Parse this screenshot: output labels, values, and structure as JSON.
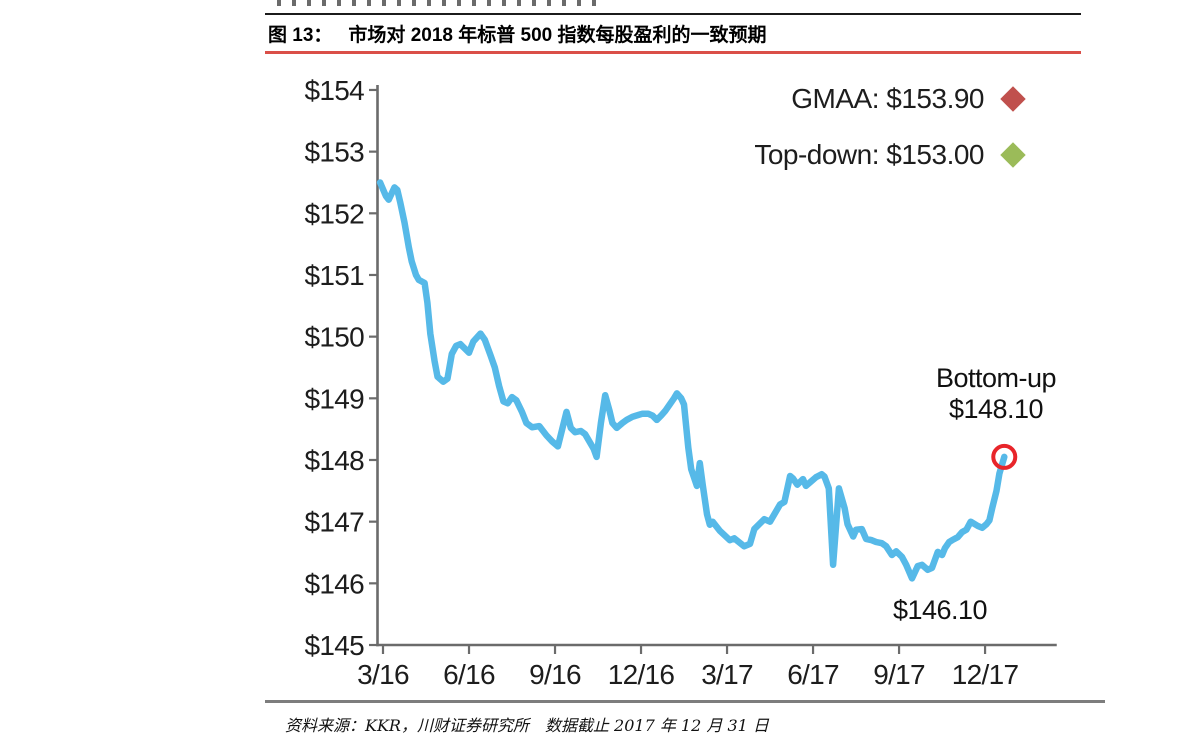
{
  "figure": {
    "label": "图 13：",
    "title": "市场对 2018 年标普 500 指数每股盈利的一致预期"
  },
  "legend": {
    "items": [
      {
        "label": "GMAA: $153.90",
        "marker": "diamond",
        "color": "#c0504d"
      },
      {
        "label": "Top-down: $153.00",
        "marker": "diamond",
        "color": "#9bbb59"
      }
    ]
  },
  "annotations": {
    "bottom_up": {
      "line1": "Bottom-up",
      "line2": "$148.10"
    },
    "low": {
      "text": "$146.10"
    }
  },
  "source_note": "资料来源：KKR，川财证券研究所　数据截止 2017 年 12 月 31 日",
  "chart_data": {
    "type": "line",
    "title": "市场对 2018 年标普 500 指数每股盈利的一致预期",
    "xlabel": "",
    "ylabel": "",
    "x_axis": {
      "unit": "months since 3/16",
      "tick_labels": [
        "3/16",
        "6/16",
        "9/16",
        "12/16",
        "3/17",
        "6/17",
        "9/17",
        "12/17"
      ],
      "tick_months": [
        0,
        3,
        6,
        9,
        12,
        15,
        18,
        21
      ],
      "range_months": [
        -0.2,
        23.5
      ]
    },
    "y_axis": {
      "tick_values": [
        145,
        146,
        147,
        148,
        149,
        150,
        151,
        152,
        153,
        154
      ],
      "tick_labels": [
        "$145",
        "$146",
        "$147",
        "$148",
        "$149",
        "$150",
        "$151",
        "$152",
        "$153",
        "$154"
      ],
      "min": 145,
      "max": 154
    },
    "axis_color": "#6b6b6b",
    "text_color": "#1d1d1d",
    "grid": false,
    "legend_position": "top-right",
    "key_values": {
      "GMAA": 153.9,
      "Top-down": 153.0,
      "Bottom-up": 148.1,
      "series_low": 146.1
    },
    "end_marker": {
      "month": 21.67,
      "value": 148.05,
      "color": "#e8252a",
      "shape": "open-circle"
    },
    "series": [
      {
        "name": "2018 S&P 500 EPS bottom-up consensus",
        "color": "#56b9e8",
        "points": [
          [
            -0.1,
            152.5
          ],
          [
            0.1,
            152.28
          ],
          [
            0.2,
            152.22
          ],
          [
            0.4,
            152.42
          ],
          [
            0.5,
            152.38
          ],
          [
            0.6,
            152.18
          ],
          [
            0.75,
            151.85
          ],
          [
            0.9,
            151.45
          ],
          [
            1.0,
            151.22
          ],
          [
            1.15,
            151.0
          ],
          [
            1.25,
            150.92
          ],
          [
            1.45,
            150.87
          ],
          [
            1.55,
            150.55
          ],
          [
            1.65,
            150.05
          ],
          [
            1.8,
            149.6
          ],
          [
            1.9,
            149.35
          ],
          [
            2.1,
            149.27
          ],
          [
            2.25,
            149.32
          ],
          [
            2.4,
            149.72
          ],
          [
            2.55,
            149.85
          ],
          [
            2.7,
            149.88
          ],
          [
            2.8,
            149.83
          ],
          [
            3.0,
            149.74
          ],
          [
            3.15,
            149.92
          ],
          [
            3.4,
            150.05
          ],
          [
            3.55,
            149.95
          ],
          [
            3.75,
            149.7
          ],
          [
            3.9,
            149.5
          ],
          [
            4.05,
            149.2
          ],
          [
            4.2,
            148.95
          ],
          [
            4.35,
            148.92
          ],
          [
            4.5,
            149.02
          ],
          [
            4.65,
            148.97
          ],
          [
            4.85,
            148.78
          ],
          [
            5.0,
            148.6
          ],
          [
            5.2,
            148.53
          ],
          [
            5.45,
            148.55
          ],
          [
            5.7,
            148.4
          ],
          [
            5.9,
            148.3
          ],
          [
            6.1,
            148.22
          ],
          [
            6.25,
            148.5
          ],
          [
            6.4,
            148.78
          ],
          [
            6.55,
            148.52
          ],
          [
            6.7,
            148.45
          ],
          [
            6.9,
            148.47
          ],
          [
            7.05,
            148.42
          ],
          [
            7.2,
            148.3
          ],
          [
            7.35,
            148.18
          ],
          [
            7.45,
            148.05
          ],
          [
            7.6,
            148.6
          ],
          [
            7.75,
            149.05
          ],
          [
            7.9,
            148.8
          ],
          [
            8.0,
            148.6
          ],
          [
            8.15,
            148.52
          ],
          [
            8.35,
            148.6
          ],
          [
            8.5,
            148.65
          ],
          [
            8.7,
            148.7
          ],
          [
            8.9,
            148.73
          ],
          [
            9.05,
            148.75
          ],
          [
            9.25,
            148.75
          ],
          [
            9.4,
            148.72
          ],
          [
            9.55,
            148.65
          ],
          [
            9.7,
            148.72
          ],
          [
            9.85,
            148.8
          ],
          [
            10.0,
            148.9
          ],
          [
            10.15,
            149.0
          ],
          [
            10.25,
            149.08
          ],
          [
            10.4,
            149.0
          ],
          [
            10.5,
            148.9
          ],
          [
            10.65,
            148.2
          ],
          [
            10.75,
            147.85
          ],
          [
            10.95,
            147.58
          ],
          [
            11.05,
            147.95
          ],
          [
            11.15,
            147.6
          ],
          [
            11.3,
            147.12
          ],
          [
            11.4,
            146.95
          ],
          [
            11.5,
            147.0
          ],
          [
            11.75,
            146.85
          ],
          [
            12.1,
            146.7
          ],
          [
            12.25,
            146.73
          ],
          [
            12.6,
            146.6
          ],
          [
            12.8,
            146.64
          ],
          [
            12.95,
            146.88
          ],
          [
            13.3,
            147.04
          ],
          [
            13.5,
            147.0
          ],
          [
            13.85,
            147.28
          ],
          [
            14.0,
            147.32
          ],
          [
            14.2,
            147.74
          ],
          [
            14.3,
            147.7
          ],
          [
            14.45,
            147.6
          ],
          [
            14.65,
            147.69
          ],
          [
            14.75,
            147.58
          ],
          [
            14.95,
            147.66
          ],
          [
            15.1,
            147.72
          ],
          [
            15.3,
            147.77
          ],
          [
            15.4,
            147.73
          ],
          [
            15.55,
            147.54
          ],
          [
            15.7,
            146.3
          ],
          [
            15.9,
            147.54
          ],
          [
            16.1,
            147.22
          ],
          [
            16.2,
            146.96
          ],
          [
            16.4,
            146.76
          ],
          [
            16.5,
            146.87
          ],
          [
            16.7,
            146.88
          ],
          [
            16.85,
            146.72
          ],
          [
            17.05,
            146.7
          ],
          [
            17.2,
            146.67
          ],
          [
            17.4,
            146.65
          ],
          [
            17.55,
            146.6
          ],
          [
            17.75,
            146.46
          ],
          [
            17.9,
            146.52
          ],
          [
            18.1,
            146.43
          ],
          [
            18.25,
            146.3
          ],
          [
            18.45,
            146.08
          ],
          [
            18.65,
            146.28
          ],
          [
            18.8,
            146.3
          ],
          [
            19.0,
            146.22
          ],
          [
            19.15,
            146.25
          ],
          [
            19.35,
            146.51
          ],
          [
            19.5,
            146.46
          ],
          [
            19.6,
            146.57
          ],
          [
            19.75,
            146.67
          ],
          [
            19.85,
            146.7
          ],
          [
            20.05,
            146.75
          ],
          [
            20.2,
            146.83
          ],
          [
            20.35,
            146.87
          ],
          [
            20.5,
            147.0
          ],
          [
            20.75,
            146.93
          ],
          [
            20.9,
            146.9
          ],
          [
            21.05,
            146.96
          ],
          [
            21.15,
            147.02
          ],
          [
            21.25,
            147.22
          ],
          [
            21.4,
            147.5
          ],
          [
            21.5,
            147.78
          ],
          [
            21.6,
            147.94
          ],
          [
            21.67,
            148.05
          ]
        ]
      }
    ]
  }
}
